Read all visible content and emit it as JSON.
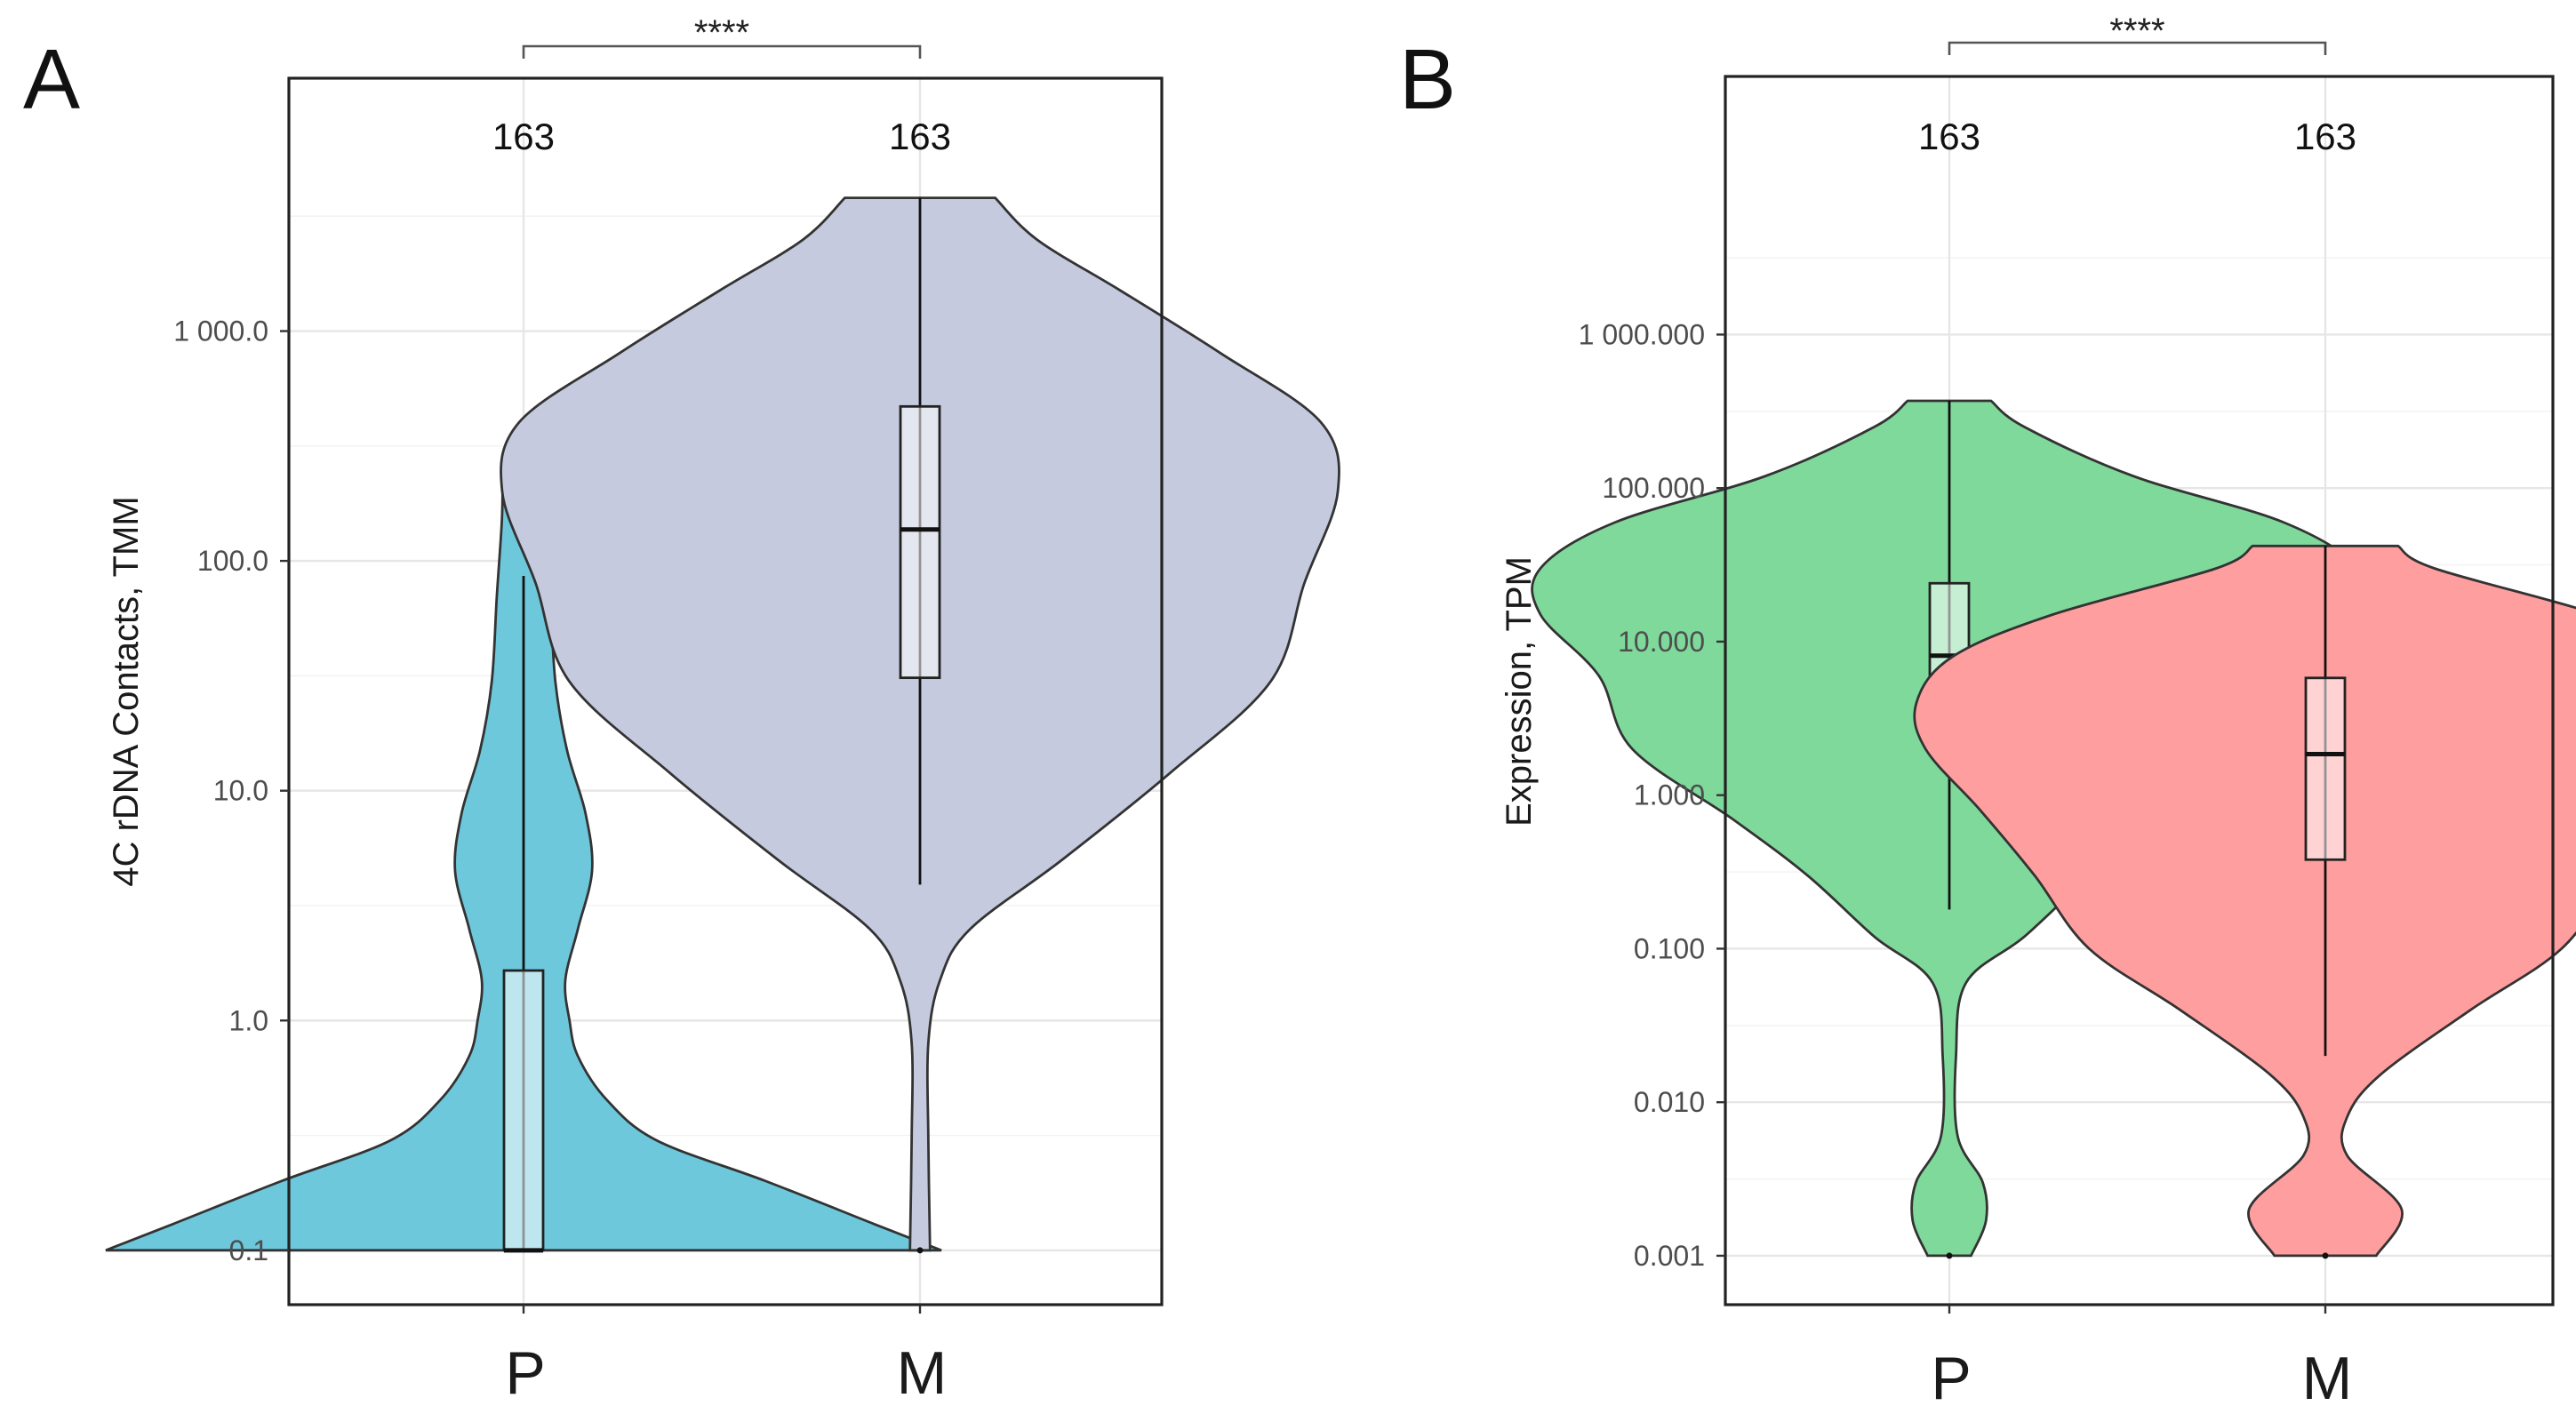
{
  "chart_data": [
    {
      "panel_label": "A",
      "type": "violin",
      "scale": "log10",
      "ylabel": "4C rDNA Contacts, TMM",
      "yticks": [
        0.1,
        1.0,
        10.0,
        100.0,
        1000.0
      ],
      "ytick_labels": [
        "0.1",
        "1.0",
        "10.0",
        "100.0",
        "1 000.0"
      ],
      "ylim": [
        0.058,
        12600
      ],
      "categories": [
        "P",
        "M"
      ],
      "counts": [
        "163",
        "163"
      ],
      "significance": "****",
      "groups": [
        {
          "name": "P",
          "color": "#6ec8dc",
          "box_fill": "#bfe6ef",
          "min": 0.1,
          "max": 240,
          "whisker_low": 0.1,
          "whisker_high": 86,
          "q1": 0.1,
          "median": 0.1,
          "q3": 1.65,
          "density": [
            [
              0.1,
              0.5
            ],
            [
              0.13,
              0.42
            ],
            [
              0.2,
              0.29
            ],
            [
              0.3,
              0.16
            ],
            [
              0.45,
              0.1
            ],
            [
              0.7,
              0.065
            ],
            [
              1.0,
              0.055
            ],
            [
              1.5,
              0.05
            ],
            [
              2.5,
              0.065
            ],
            [
              4.5,
              0.082
            ],
            [
              8,
              0.074
            ],
            [
              15,
              0.052
            ],
            [
              30,
              0.038
            ],
            [
              70,
              0.032
            ],
            [
              150,
              0.026
            ],
            [
              240,
              0.025
            ]
          ]
        },
        {
          "name": "M",
          "color": "#c5cade",
          "box_fill": "#e8eaf2",
          "min": 0.1,
          "max": 3800,
          "whisker_low": 3.9,
          "whisker_high": 3800,
          "q1": 31,
          "median": 137,
          "q3": 470,
          "density": [
            [
              0.1,
              0.006
            ],
            [
              0.3,
              0.005
            ],
            [
              0.8,
              0.005
            ],
            [
              1.5,
              0.012
            ],
            [
              2.5,
              0.03
            ],
            [
              5,
              0.085
            ],
            [
              12,
              0.15
            ],
            [
              30,
              0.21
            ],
            [
              80,
              0.23
            ],
            [
              200,
              0.25
            ],
            [
              400,
              0.24
            ],
            [
              800,
              0.18
            ],
            [
              1500,
              0.12
            ],
            [
              2500,
              0.07
            ],
            [
              3800,
              0.045
            ]
          ]
        }
      ]
    },
    {
      "panel_label": "B",
      "type": "violin",
      "scale": "log10",
      "ylabel": "Expression, TPM",
      "yticks": [
        0.001,
        0.01,
        0.1,
        1.0,
        10.0,
        100.0,
        1000.0
      ],
      "ytick_labels": [
        "0.001",
        "0.010",
        "0.100",
        "1.000",
        "10.000",
        "100.000",
        "1 000.000"
      ],
      "ylim": [
        0.00048,
        48000
      ],
      "categories": [
        "P",
        "M"
      ],
      "counts": [
        "163",
        "163"
      ],
      "significance": "****",
      "groups": [
        {
          "name": "P",
          "color": "#7fd99b",
          "box_fill": "#c8efd4",
          "min": 0.001,
          "max": 370,
          "whisker_low": 0.18,
          "whisker_high": 370,
          "q1": 2.3,
          "median": 8.1,
          "q3": 24,
          "density": [
            [
              0.001,
              0.013
            ],
            [
              0.0017,
              0.022
            ],
            [
              0.003,
              0.02
            ],
            [
              0.006,
              0.005
            ],
            [
              0.02,
              0.004
            ],
            [
              0.06,
              0.01
            ],
            [
              0.12,
              0.045
            ],
            [
              0.3,
              0.085
            ],
            [
              0.7,
              0.13
            ],
            [
              2,
              0.19
            ],
            [
              6,
              0.21
            ],
            [
              15,
              0.245
            ],
            [
              30,
              0.245
            ],
            [
              60,
              0.2
            ],
            [
              120,
              0.11
            ],
            [
              250,
              0.045
            ],
            [
              370,
              0.025
            ]
          ]
        },
        {
          "name": "M",
          "color": "#ff9e9e",
          "box_fill": "#ffd6d6",
          "min": 0.001,
          "max": 42,
          "whisker_low": 0.02,
          "whisker_high": 42,
          "q1": 0.38,
          "median": 1.85,
          "q3": 5.8,
          "density": [
            [
              0.001,
              0.028
            ],
            [
              0.002,
              0.042
            ],
            [
              0.0045,
              0.012
            ],
            [
              0.008,
              0.012
            ],
            [
              0.015,
              0.03
            ],
            [
              0.04,
              0.08
            ],
            [
              0.1,
              0.13
            ],
            [
              0.3,
              0.16
            ],
            [
              0.8,
              0.19
            ],
            [
              2,
              0.22
            ],
            [
              4,
              0.225
            ],
            [
              8,
              0.205
            ],
            [
              15,
              0.15
            ],
            [
              30,
              0.06
            ],
            [
              42,
              0.04
            ]
          ]
        }
      ]
    }
  ]
}
